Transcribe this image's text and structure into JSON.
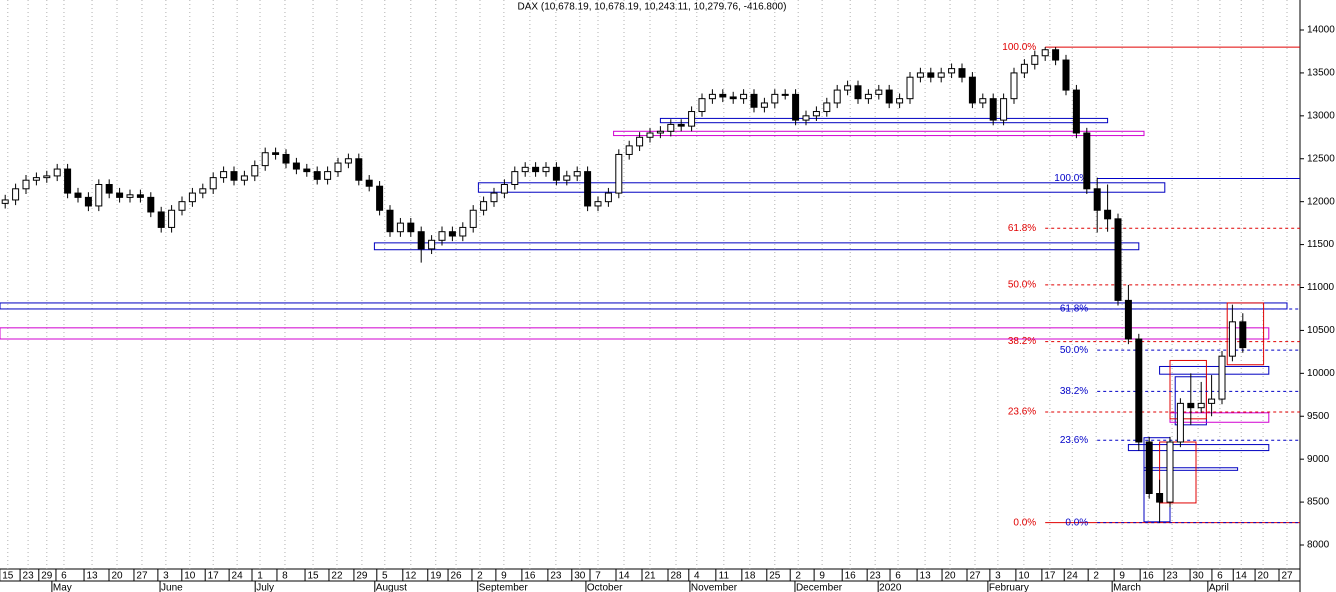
{
  "chart_data": {
    "type": "candlestick",
    "title": "DAX (10,678.19, 10,678.19, 10,243.11, 10,279.76, -416.800)",
    "x": [
      1,
      3,
      5,
      7,
      9,
      11,
      13,
      15,
      17,
      19,
      21,
      23,
      25,
      27,
      29,
      31,
      33,
      35,
      37,
      39,
      41,
      43,
      45,
      47,
      49,
      51,
      53,
      55,
      57,
      59,
      61,
      63,
      65,
      67,
      69,
      71,
      73,
      75,
      77,
      79,
      81,
      83,
      85,
      87,
      89,
      91,
      93,
      95,
      97,
      99,
      101,
      103,
      105,
      107,
      109,
      111,
      113,
      115,
      117,
      119,
      121,
      123,
      125,
      127,
      129,
      131,
      133,
      135,
      137,
      139,
      141,
      143,
      145,
      147,
      149,
      151,
      153,
      155,
      157,
      159,
      161,
      163,
      165,
      167,
      169,
      171,
      173,
      175,
      177,
      179,
      181,
      183,
      185,
      187,
      189,
      191,
      193,
      195,
      197,
      199,
      201,
      203,
      205,
      207,
      209,
      211,
      213,
      215,
      217,
      219,
      221,
      223,
      225,
      227,
      229,
      231,
      233,
      235,
      237,
      239
    ],
    "open": [
      11980,
      12020,
      12150,
      12250,
      12280,
      12300,
      12380,
      12100,
      12050,
      11950,
      12200,
      12100,
      12050,
      12080,
      12050,
      11880,
      11700,
      11900,
      12000,
      12100,
      12150,
      12280,
      12350,
      12250,
      12300,
      12420,
      12570,
      12550,
      12450,
      12380,
      12350,
      12260,
      12350,
      12450,
      12500,
      12250,
      12180,
      11900,
      11650,
      11750,
      11650,
      11450,
      11550,
      11650,
      11600,
      11700,
      11900,
      12000,
      12100,
      12200,
      12350,
      12400,
      12350,
      12400,
      12250,
      12300,
      12350,
      11950,
      12000,
      12100,
      12550,
      12650,
      12750,
      12800,
      12820,
      12900,
      12880,
      13050,
      13200,
      13250,
      13220,
      13200,
      13250,
      13100,
      13150,
      13250,
      13250,
      12950,
      13000,
      13050,
      13150,
      13300,
      13350,
      13200,
      13250,
      13300,
      13150,
      13200,
      13450,
      13500,
      13450,
      13500,
      13550,
      13450,
      13150,
      13200,
      12950,
      13200,
      13500,
      13600,
      13700,
      13770,
      13650,
      13300,
      12800,
      12150,
      11900,
      11800,
      10850,
      10400,
      9200,
      8600,
      8500,
      9200,
      9650,
      9600,
      9650,
      9700,
      10200,
      10600
    ],
    "high": [
      12080,
      12210,
      12310,
      12340,
      12360,
      12440,
      12440,
      12160,
      12110,
      12260,
      12260,
      12160,
      12140,
      12140,
      12110,
      11940,
      11960,
      12060,
      12160,
      12210,
      12340,
      12410,
      12410,
      12360,
      12480,
      12630,
      12630,
      12610,
      12510,
      12440,
      12410,
      12410,
      12510,
      12560,
      12560,
      12310,
      12240,
      11960,
      11810,
      11810,
      11710,
      11610,
      11710,
      11710,
      11760,
      11960,
      12060,
      12160,
      12260,
      12410,
      12460,
      12460,
      12460,
      12460,
      12360,
      12410,
      12410,
      12060,
      12160,
      12610,
      12710,
      12810,
      12860,
      12880,
      12960,
      12960,
      13110,
      13260,
      13310,
      13310,
      13280,
      13310,
      13310,
      13210,
      13310,
      13310,
      13310,
      13060,
      13110,
      13210,
      13360,
      13410,
      13410,
      13310,
      13360,
      13360,
      13260,
      13510,
      13560,
      13560,
      13560,
      13610,
      13610,
      13510,
      13260,
      13260,
      13260,
      13560,
      13660,
      13760,
      13800,
      13800,
      13710,
      13360,
      12860,
      12280,
      12200,
      11860,
      11030,
      10460,
      9260,
      8760,
      9260,
      9710,
      10000,
      9900,
      9980,
      10260,
      10800,
      10700
    ],
    "low": [
      11920,
      11960,
      12090,
      12190,
      12220,
      12240,
      12040,
      11990,
      11890,
      11890,
      12040,
      11990,
      11990,
      11990,
      11820,
      11640,
      11640,
      11840,
      11940,
      12040,
      12090,
      12220,
      12190,
      12190,
      12240,
      12360,
      12490,
      12390,
      12320,
      12290,
      12200,
      12200,
      12290,
      12390,
      12190,
      12120,
      11840,
      11590,
      11590,
      11590,
      11290,
      11390,
      11490,
      11540,
      11540,
      11640,
      11840,
      11940,
      12040,
      12140,
      12290,
      12290,
      12290,
      12190,
      12190,
      12240,
      11890,
      11890,
      11940,
      12040,
      12490,
      12590,
      12690,
      12740,
      12760,
      12820,
      12820,
      12990,
      13140,
      13160,
      13140,
      13140,
      13040,
      13040,
      13090,
      13190,
      12890,
      12890,
      12940,
      12990,
      13090,
      13240,
      13140,
      13140,
      13190,
      13090,
      13090,
      13140,
      13390,
      13390,
      13390,
      13440,
      13390,
      13090,
      13090,
      12890,
      12890,
      13140,
      13440,
      13540,
      13640,
      13590,
      13240,
      12740,
      12090,
      11640,
      11650,
      10790,
      10340,
      9100,
      8540,
      8260,
      8440,
      9140,
      9400,
      9540,
      9500,
      9640,
      10140,
      10240
    ],
    "close": [
      12020,
      12150,
      12250,
      12280,
      12300,
      12380,
      12100,
      12050,
      11950,
      12200,
      12100,
      12050,
      12080,
      12050,
      11880,
      11700,
      11900,
      12000,
      12100,
      12150,
      12280,
      12350,
      12250,
      12300,
      12420,
      12570,
      12550,
      12450,
      12380,
      12350,
      12260,
      12350,
      12450,
      12500,
      12250,
      12180,
      11900,
      11650,
      11750,
      11650,
      11450,
      11550,
      11650,
      11600,
      11700,
      11900,
      12000,
      12100,
      12200,
      12350,
      12400,
      12350,
      12400,
      12250,
      12300,
      12350,
      11950,
      12000,
      12100,
      12550,
      12650,
      12750,
      12800,
      12820,
      12900,
      12880,
      13050,
      13200,
      13250,
      13220,
      13200,
      13250,
      13100,
      13150,
      13250,
      13250,
      12950,
      13000,
      13050,
      13150,
      13300,
      13350,
      13200,
      13250,
      13300,
      13150,
      13200,
      13450,
      13500,
      13450,
      13500,
      13550,
      13450,
      13150,
      13200,
      12950,
      13200,
      13500,
      13600,
      13700,
      13770,
      13650,
      13300,
      12800,
      12150,
      11900,
      11800,
      10850,
      10400,
      9200,
      8600,
      8500,
      9200,
      9650,
      9600,
      9650,
      9700,
      10200,
      10600,
      10300
    ],
    "xlim": [
      0,
      250
    ],
    "ylim": [
      8000,
      14000
    ],
    "yticks": [
      8000,
      8500,
      9000,
      9500,
      10000,
      10500,
      11000,
      11500,
      12000,
      12500,
      13000,
      13500,
      14000
    ],
    "xticks": [
      {
        "value": 1.5,
        "label": "15"
      },
      {
        "value": 5.4,
        "label": "23"
      },
      {
        "value": 9,
        "label": "29"
      },
      {
        "value": 12.3,
        "label": "6"
      },
      {
        "value": 17.7,
        "label": "13"
      },
      {
        "value": 22.5,
        "label": "20"
      },
      {
        "value": 27.3,
        "label": "27"
      },
      {
        "value": 31.9,
        "label": "3"
      },
      {
        "value": 36.5,
        "label": "10"
      },
      {
        "value": 41,
        "label": "17"
      },
      {
        "value": 45.6,
        "label": "24"
      },
      {
        "value": 50,
        "label": "1"
      },
      {
        "value": 54.8,
        "label": "8"
      },
      {
        "value": 60.2,
        "label": "15"
      },
      {
        "value": 64.8,
        "label": "22"
      },
      {
        "value": 69.6,
        "label": "29"
      },
      {
        "value": 74,
        "label": "5"
      },
      {
        "value": 79,
        "label": "12"
      },
      {
        "value": 83.8,
        "label": "19"
      },
      {
        "value": 87.7,
        "label": "26"
      },
      {
        "value": 92.3,
        "label": "2"
      },
      {
        "value": 96.9,
        "label": "9"
      },
      {
        "value": 101.9,
        "label": "16"
      },
      {
        "value": 106.9,
        "label": "23"
      },
      {
        "value": 111.5,
        "label": "30"
      },
      {
        "value": 115,
        "label": "7"
      },
      {
        "value": 120,
        "label": "14"
      },
      {
        "value": 125,
        "label": "21"
      },
      {
        "value": 130,
        "label": "28"
      },
      {
        "value": 134,
        "label": "4"
      },
      {
        "value": 139.2,
        "label": "11"
      },
      {
        "value": 144.2,
        "label": "18"
      },
      {
        "value": 149,
        "label": "25"
      },
      {
        "value": 153.5,
        "label": "2"
      },
      {
        "value": 158.1,
        "label": "9"
      },
      {
        "value": 163.5,
        "label": "16"
      },
      {
        "value": 168.3,
        "label": "23"
      },
      {
        "value": 172.7,
        "label": "6"
      },
      {
        "value": 177.9,
        "label": "13"
      },
      {
        "value": 182.7,
        "label": "20"
      },
      {
        "value": 187.5,
        "label": "27"
      },
      {
        "value": 191.9,
        "label": "3"
      },
      {
        "value": 196.9,
        "label": "10"
      },
      {
        "value": 201.9,
        "label": "17"
      },
      {
        "value": 206.2,
        "label": "24"
      },
      {
        "value": 210.8,
        "label": "2"
      },
      {
        "value": 215.8,
        "label": "9"
      },
      {
        "value": 220.8,
        "label": "16"
      },
      {
        "value": 225.4,
        "label": "23"
      },
      {
        "value": 230.4,
        "label": "30"
      },
      {
        "value": 234.6,
        "label": "6"
      },
      {
        "value": 238.7,
        "label": "14"
      },
      {
        "value": 242.9,
        "label": "20"
      },
      {
        "value": 247.5,
        "label": "27"
      }
    ],
    "months": [
      {
        "value": 11.9,
        "label": "May"
      },
      {
        "value": 32.7,
        "label": "June"
      },
      {
        "value": 51,
        "label": "July"
      },
      {
        "value": 74,
        "label": "August"
      },
      {
        "value": 93.8,
        "label": "September"
      },
      {
        "value": 114.6,
        "label": "October"
      },
      {
        "value": 134.6,
        "label": "November"
      },
      {
        "value": 154.8,
        "label": "December"
      },
      {
        "value": 170.8,
        "label": "2020"
      },
      {
        "value": 191.9,
        "label": "February"
      },
      {
        "value": 215.8,
        "label": "March"
      },
      {
        "value": 234.2,
        "label": "April"
      }
    ],
    "grid": "x",
    "up_color": "#ffffff",
    "down_color": "#000000",
    "levels": [
      {
        "label": "100.0%",
        "value": 13800,
        "color": "#e00000",
        "dashed": false,
        "from": 201,
        "to": 250
      },
      {
        "label": "61.8%",
        "value": 11690,
        "color": "#e00000",
        "dashed": true,
        "from": 201,
        "to": 250
      },
      {
        "label": "50.0%",
        "value": 11030,
        "color": "#e00000",
        "dashed": true,
        "from": 201,
        "to": 250
      },
      {
        "label": "38.2%",
        "value": 10370,
        "color": "#e00000",
        "dashed": true,
        "from": 201,
        "to": 250
      },
      {
        "label": "23.6%",
        "value": 9550,
        "color": "#e00000",
        "dashed": true,
        "from": 201,
        "to": 250
      },
      {
        "label": "0.0%",
        "value": 8260,
        "color": "#e00000",
        "dashed": false,
        "from": 201,
        "to": 250
      },
      {
        "label": "100.0%",
        "value": 12270,
        "color": "#0000c8",
        "dashed": false,
        "from": 211,
        "to": 250
      },
      {
        "label": "61.8%",
        "value": 10750,
        "color": "#0000c8",
        "dashed": true,
        "from": 211,
        "to": 250
      },
      {
        "label": "50.0%",
        "value": 10270,
        "color": "#0000c8",
        "dashed": true,
        "from": 211,
        "to": 250
      },
      {
        "label": "38.2%",
        "value": 9790,
        "color": "#0000c8",
        "dashed": true,
        "from": 211,
        "to": 250
      },
      {
        "label": "23.6%",
        "value": 9220,
        "color": "#0000c8",
        "dashed": true,
        "from": 211,
        "to": 250
      },
      {
        "label": "0.0%",
        "value": 8260,
        "color": "#0000c8",
        "dashed": true,
        "from": 211,
        "to": 250
      }
    ],
    "boxes": [
      {
        "color": "#0000c0",
        "x": [
          127,
          213
        ],
        "y": [
          12920,
          12970
        ]
      },
      {
        "color": "#0000c0",
        "x": [
          92,
          224
        ],
        "y": [
          12110,
          12220
        ]
      },
      {
        "color": "#0000c0",
        "x": [
          72,
          219
        ],
        "y": [
          11440,
          11520
        ]
      },
      {
        "color": "#0000c0",
        "x": [
          0,
          247.5
        ],
        "y": [
          10750,
          10820
        ]
      },
      {
        "color": "#0000c0",
        "x": [
          223,
          244
        ],
        "y": [
          9990,
          10080
        ]
      },
      {
        "color": "#0000c0",
        "x": [
          217,
          244
        ],
        "y": [
          9100,
          9170
        ]
      },
      {
        "color": "#0000c0",
        "x": [
          220,
          238
        ],
        "y": [
          8870,
          8900
        ]
      },
      {
        "color": "#0000c0",
        "x": [
          220,
          225
        ],
        "y": [
          8270,
          9250
        ]
      },
      {
        "color": "#0000c0",
        "x": [
          226,
          232
        ],
        "y": [
          9400,
          9960
        ]
      },
      {
        "color": "#d000d0",
        "x": [
          118,
          220
        ],
        "y": [
          12770,
          12820
        ]
      },
      {
        "color": "#d000d0",
        "x": [
          0,
          244
        ],
        "y": [
          10400,
          10530
        ]
      },
      {
        "color": "#d000d0",
        "x": [
          225,
          244
        ],
        "y": [
          9430,
          9540
        ]
      },
      {
        "color": "#e00000",
        "x": [
          236,
          243
        ],
        "y": [
          10100,
          10820
        ]
      },
      {
        "color": "#e00000",
        "x": [
          225,
          232
        ],
        "y": [
          9470,
          10150
        ]
      },
      {
        "color": "#e00000",
        "x": [
          223,
          230
        ],
        "y": [
          8490,
          9200
        ]
      }
    ]
  }
}
